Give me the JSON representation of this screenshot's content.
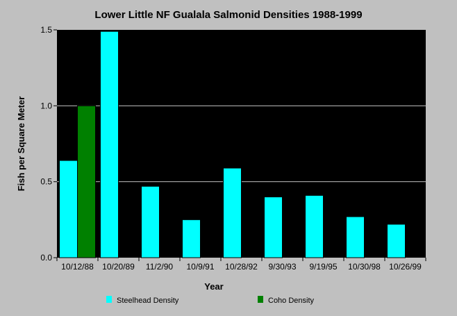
{
  "chart_data": {
    "type": "bar",
    "title": "Lower Little NF Gualala Salmonid Densities 1988-1999",
    "xlabel": "Year",
    "ylabel": "Fish per Square Meter",
    "ylim": [
      0,
      1.5
    ],
    "yticks": [
      "0.0",
      "0.5",
      "1.0",
      "1.5"
    ],
    "grid": true,
    "legend_position": "bottom",
    "categories": [
      "10/12/88",
      "10/20/89",
      "11/2/90",
      "10/9/91",
      "10/28/92",
      "9/30/93",
      "9/19/95",
      "10/30/98",
      "10/26/99"
    ],
    "series": [
      {
        "name": "Steelhead Density",
        "color": "#00ffff",
        "values": [
          0.64,
          1.49,
          0.47,
          0.25,
          0.59,
          0.4,
          0.41,
          0.27,
          0.22
        ]
      },
      {
        "name": "Coho Density",
        "color": "#008000",
        "values": [
          1.0,
          null,
          null,
          null,
          null,
          null,
          null,
          null,
          null
        ]
      }
    ]
  }
}
